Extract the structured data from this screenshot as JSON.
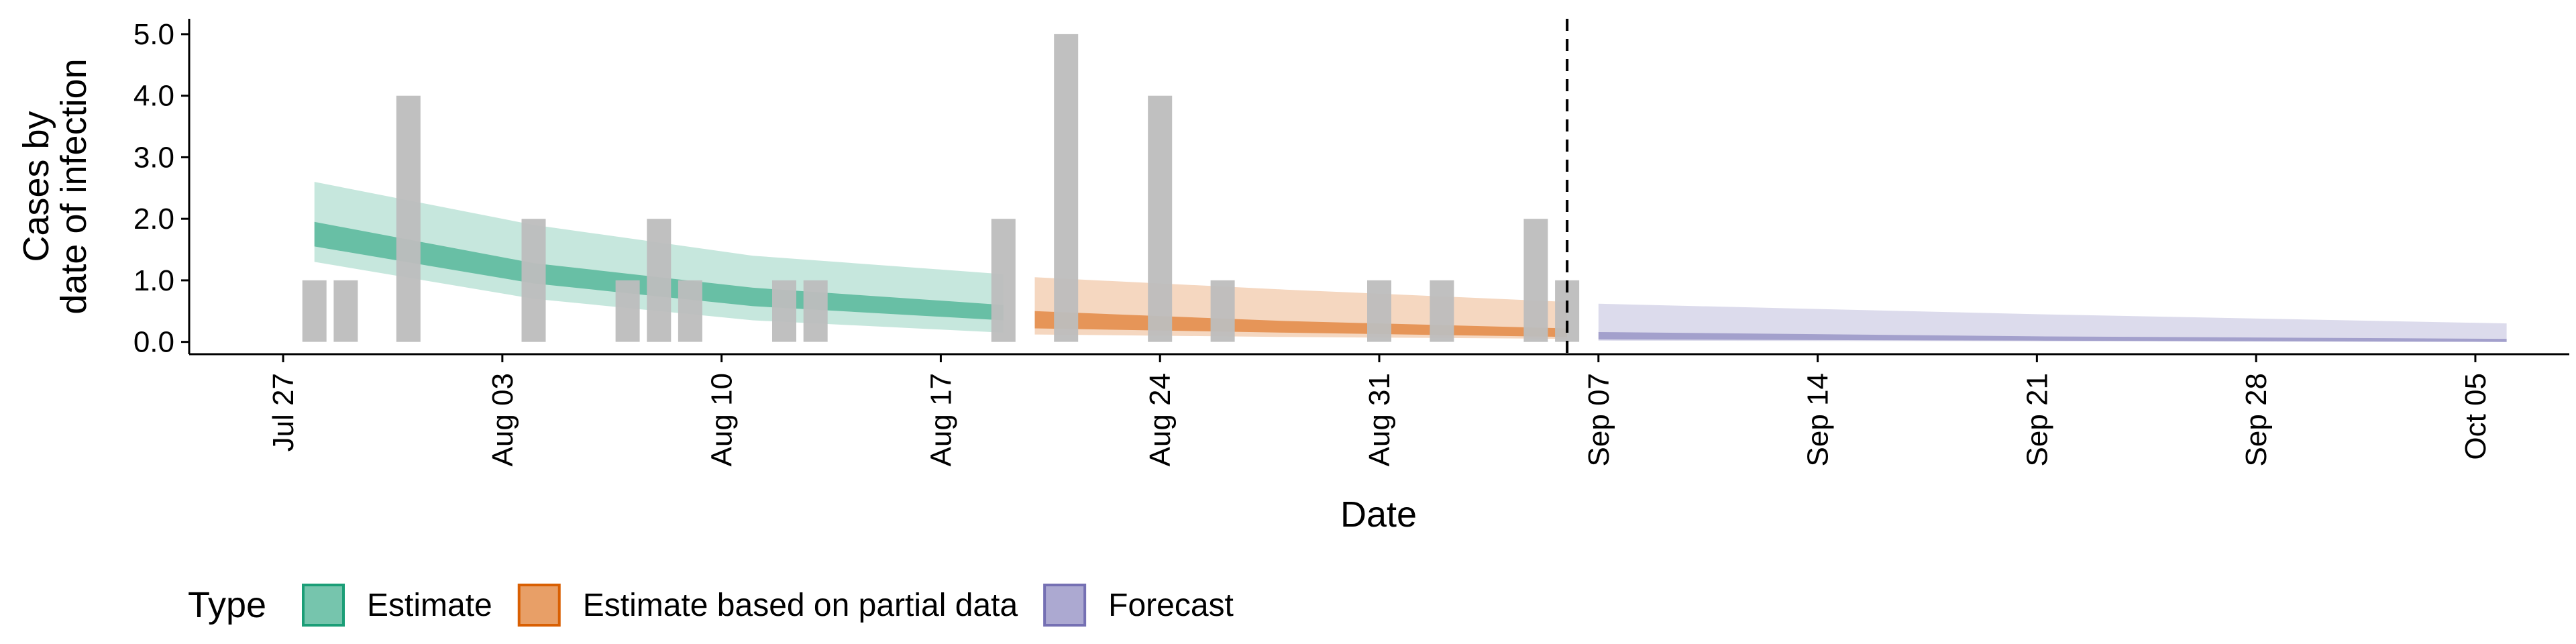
{
  "chart_data": {
    "type": "area",
    "xlabel": "Date",
    "ylabel_lines": [
      "Cases by",
      "date of infection"
    ],
    "ylim": [
      -0.2,
      5.25
    ],
    "xlim": [
      "2020-07-24",
      "2020-10-08"
    ],
    "y_ticks": [
      {
        "value": 0,
        "label": "0.0"
      },
      {
        "value": 1,
        "label": "1.0"
      },
      {
        "value": 2,
        "label": "2.0"
      },
      {
        "value": 3,
        "label": "3.0"
      },
      {
        "value": 4,
        "label": "4.0"
      },
      {
        "value": 5,
        "label": "5.0"
      }
    ],
    "x_ticks": [
      {
        "date": "2020-07-27",
        "label": "Jul 27"
      },
      {
        "date": "2020-08-03",
        "label": "Aug 03"
      },
      {
        "date": "2020-08-10",
        "label": "Aug 10"
      },
      {
        "date": "2020-08-17",
        "label": "Aug 17"
      },
      {
        "date": "2020-08-24",
        "label": "Aug 24"
      },
      {
        "date": "2020-08-31",
        "label": "Aug 31"
      },
      {
        "date": "2020-09-07",
        "label": "Sep 07"
      },
      {
        "date": "2020-09-14",
        "label": "Sep 14"
      },
      {
        "date": "2020-09-21",
        "label": "Sep 21"
      },
      {
        "date": "2020-09-28",
        "label": "Sep 28"
      },
      {
        "date": "2020-10-05",
        "label": "Oct 05"
      }
    ],
    "cutoff_date": "2020-09-06",
    "observed_cases": {
      "color": "#bdbdbd",
      "points": [
        {
          "date": "2020-07-28",
          "value": 1
        },
        {
          "date": "2020-07-29",
          "value": 1
        },
        {
          "date": "2020-07-31",
          "value": 4
        },
        {
          "date": "2020-08-04",
          "value": 2
        },
        {
          "date": "2020-08-07",
          "value": 1
        },
        {
          "date": "2020-08-08",
          "value": 2
        },
        {
          "date": "2020-08-09",
          "value": 1
        },
        {
          "date": "2020-08-12",
          "value": 1
        },
        {
          "date": "2020-08-13",
          "value": 1
        },
        {
          "date": "2020-08-19",
          "value": 2
        },
        {
          "date": "2020-08-21",
          "value": 5
        },
        {
          "date": "2020-08-24",
          "value": 4
        },
        {
          "date": "2020-08-26",
          "value": 1
        },
        {
          "date": "2020-08-31",
          "value": 1
        },
        {
          "date": "2020-09-02",
          "value": 1
        },
        {
          "date": "2020-09-05",
          "value": 2
        },
        {
          "date": "2020-09-06",
          "value": 1
        }
      ]
    },
    "legend_title": "Type",
    "legend_position": "bottom",
    "series": [
      {
        "name": "Estimate",
        "color": "#1b9e77",
        "points": [
          {
            "date": "2020-07-28",
            "outer": [
              1.3,
              2.6
            ],
            "inner": [
              1.55,
              1.95
            ]
          },
          {
            "date": "2020-08-04",
            "outer": [
              0.7,
              1.9
            ],
            "inner": [
              0.95,
              1.28
            ]
          },
          {
            "date": "2020-08-11",
            "outer": [
              0.35,
              1.4
            ],
            "inner": [
              0.58,
              0.88
            ]
          },
          {
            "date": "2020-08-19",
            "outer": [
              0.15,
              1.1
            ],
            "inner": [
              0.35,
              0.6
            ]
          }
        ]
      },
      {
        "name": "Estimate based on partial data",
        "color": "#d95f02",
        "points": [
          {
            "date": "2020-08-20",
            "outer": [
              0.12,
              1.05
            ],
            "inner": [
              0.22,
              0.5
            ]
          },
          {
            "date": "2020-08-28",
            "outer": [
              0.08,
              0.85
            ],
            "inner": [
              0.15,
              0.34
            ]
          },
          {
            "date": "2020-09-06",
            "outer": [
              0.05,
              0.65
            ],
            "inner": [
              0.08,
              0.22
            ]
          }
        ]
      },
      {
        "name": "Forecast",
        "color": "#7570b3",
        "points": [
          {
            "date": "2020-09-07",
            "outer": [
              0.02,
              0.62
            ],
            "inner": [
              0.04,
              0.16
            ]
          },
          {
            "date": "2020-09-21",
            "outer": [
              0.01,
              0.45
            ],
            "inner": [
              0.02,
              0.09
            ]
          },
          {
            "date": "2020-10-06",
            "outer": [
              0.0,
              0.3
            ],
            "inner": [
              0.0,
              0.05
            ]
          }
        ]
      }
    ]
  }
}
